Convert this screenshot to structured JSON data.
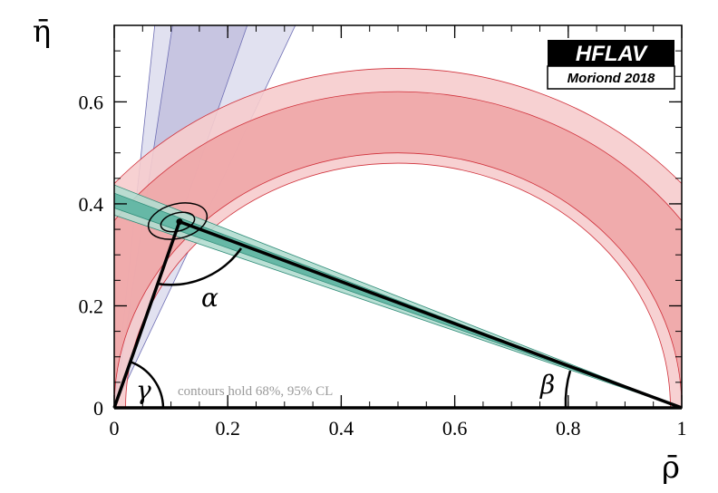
{
  "chart_data": {
    "type": "area",
    "title": "",
    "xlabel": "ρ̄",
    "ylabel": "η̄",
    "xlim": [
      0,
      1
    ],
    "ylim": [
      0,
      0.75
    ],
    "x_ticks": [
      {
        "v": 0,
        "label": "0"
      },
      {
        "v": 0.2,
        "label": "0.2"
      },
      {
        "v": 0.4,
        "label": "0.4"
      },
      {
        "v": 0.6,
        "label": "0.6"
      },
      {
        "v": 0.8,
        "label": "0.8"
      },
      {
        "v": 1,
        "label": "1"
      }
    ],
    "y_ticks": [
      {
        "v": 0,
        "label": "0"
      },
      {
        "v": 0.2,
        "label": "0.2"
      },
      {
        "v": 0.4,
        "label": "0.4"
      },
      {
        "v": 0.6,
        "label": "0.6"
      }
    ],
    "grid": false,
    "apex": {
      "rho": 0.115,
      "eta": 0.365
    },
    "gamma_constraint": {
      "slopes_95": [
        2.35,
        10.5
      ],
      "slopes_68": [
        3.2,
        7.3
      ],
      "colors": {
        "band_95": "#e1e1f0",
        "band_68": "#c7c5e1",
        "edge": "#6e6eb4"
      }
    },
    "beta_constraint": {
      "eta_at_rho0_95": [
        0.378,
        0.437
      ],
      "eta_at_rho0_68": [
        0.392,
        0.421
      ],
      "colors": {
        "band_95": "#b3ddd0",
        "band_68": "#66b8a6",
        "edge": "#2f8c78"
      }
    },
    "alpha_constraint": {
      "center": [
        0.5,
        0
      ],
      "radii_95": [
        0.48,
        0.666
      ],
      "radii_68": [
        0.5,
        0.62
      ],
      "colors": {
        "band_95": "#f6cccd",
        "band_68": "#eea4a6",
        "edge": "#d0303a"
      }
    },
    "annotations": {
      "alpha": "α",
      "beta": "β",
      "gamma": "γ",
      "note": "contours hold 68%, 95% CL"
    },
    "logo": {
      "top": "HFLAV",
      "bottom": "Moriond 2018"
    }
  }
}
